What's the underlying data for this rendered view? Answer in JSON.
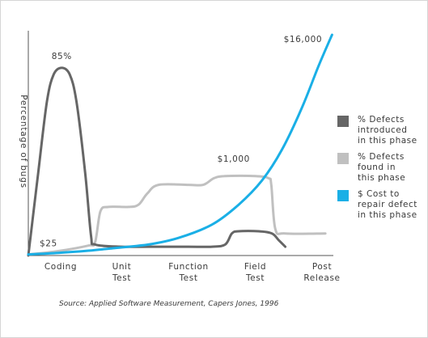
{
  "chart_data": {
    "type": "line",
    "ylabel": "Percentage of bugs",
    "categories": [
      "Coding",
      "Unit Test",
      "Function Test",
      "Field Test",
      "Post Release"
    ],
    "series": [
      {
        "name": "% Defects introduced in this phase",
        "color": "#666666",
        "points": [
          [
            0,
            0.0
          ],
          [
            0.15,
            38
          ],
          [
            0.28,
            70
          ],
          [
            0.38,
            82
          ],
          [
            0.5,
            85
          ],
          [
            0.62,
            82
          ],
          [
            0.72,
            70
          ],
          [
            0.85,
            38
          ],
          [
            0.94,
            9
          ],
          [
            1.0,
            5
          ],
          [
            1.4,
            4
          ],
          [
            2.0,
            4
          ],
          [
            2.4,
            4
          ],
          [
            2.75,
            4
          ],
          [
            2.95,
            5
          ],
          [
            3.05,
            10
          ],
          [
            3.15,
            11
          ],
          [
            3.45,
            11
          ],
          [
            3.65,
            10
          ],
          [
            3.75,
            7
          ],
          [
            3.85,
            4
          ]
        ]
      },
      {
        "name": "% Defects found in this phase",
        "color": "#c0c0c0",
        "points": [
          [
            0,
            0.5
          ],
          [
            0.45,
            2
          ],
          [
            0.9,
            4.5
          ],
          [
            1.0,
            6
          ],
          [
            1.08,
            20
          ],
          [
            1.2,
            22
          ],
          [
            1.5,
            22
          ],
          [
            1.65,
            23
          ],
          [
            1.78,
            28
          ],
          [
            1.95,
            32
          ],
          [
            2.4,
            32
          ],
          [
            2.62,
            32
          ],
          [
            2.78,
            35
          ],
          [
            2.95,
            36
          ],
          [
            3.4,
            36
          ],
          [
            3.6,
            35
          ],
          [
            3.64,
            32
          ],
          [
            3.7,
            12
          ],
          [
            3.85,
            10
          ],
          [
            4.45,
            10
          ]
        ]
      },
      {
        "name": "$ Cost to repair defect in this phase",
        "color": "#1aafe6",
        "points": [
          [
            0,
            0.5
          ],
          [
            0.45,
            1.2
          ],
          [
            0.9,
            2.2
          ],
          [
            1.3,
            3.4
          ],
          [
            1.8,
            5.0
          ],
          [
            2.25,
            8.0
          ],
          [
            2.75,
            14
          ],
          [
            3.15,
            23
          ],
          [
            3.5,
            34
          ],
          [
            3.8,
            48
          ],
          [
            4.1,
            67
          ],
          [
            4.35,
            86
          ],
          [
            4.55,
            100
          ]
        ]
      }
    ],
    "annotations": [
      {
        "text": "85%",
        "series": 0,
        "at": [
          0.5,
          85
        ]
      },
      {
        "text": "$25",
        "series": 2,
        "at": [
          0,
          0.5
        ]
      },
      {
        "text": "$1,000",
        "series": 2,
        "at": [
          3.5,
          34
        ]
      },
      {
        "text": "$16,000",
        "series": 2,
        "at": [
          4.55,
          100
        ]
      }
    ],
    "grid": false,
    "legend_placement": "right"
  },
  "source": "Source: Applied Software Measurement, Capers Jones, 1996"
}
